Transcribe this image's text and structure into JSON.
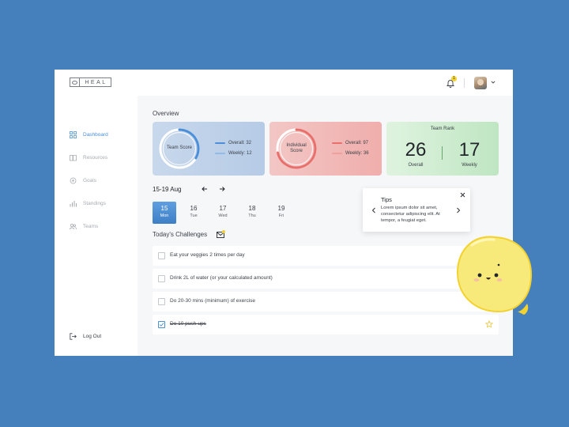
{
  "brand": {
    "name": "HEAL"
  },
  "header": {
    "notification_count": "1"
  },
  "sidebar": {
    "items": [
      {
        "label": "Dashboard",
        "icon": "grid-icon",
        "active": true
      },
      {
        "label": "Resources",
        "icon": "book-icon",
        "active": false
      },
      {
        "label": "Goals",
        "icon": "target-icon",
        "active": false
      },
      {
        "label": "Standings",
        "icon": "bar-chart-icon",
        "active": false
      },
      {
        "label": "Teams",
        "icon": "users-icon",
        "active": false
      }
    ],
    "logout_label": "Log Out"
  },
  "overview": {
    "title": "Overview",
    "team_score": {
      "label": "Team Score",
      "overall": "Overall: 32",
      "weekly": "Weekly: 12",
      "color": "#4a8fd8"
    },
    "individual_score": {
      "label_line1": "Individual",
      "label_line2": "Score",
      "overall": "Overall: 97",
      "weekly": "Weekly: 36",
      "color": "#e8706c"
    },
    "team_rank": {
      "title": "Team Rank",
      "overall_value": "26",
      "overall_label": "Overall",
      "weekly_value": "17",
      "weekly_label": "Weekly"
    }
  },
  "week": {
    "range": "15-19 Aug",
    "days": [
      {
        "num": "15",
        "name": "Mon",
        "selected": true
      },
      {
        "num": "16",
        "name": "Tue",
        "selected": false
      },
      {
        "num": "17",
        "name": "Wed",
        "selected": false
      },
      {
        "num": "18",
        "name": "Thu",
        "selected": false
      },
      {
        "num": "19",
        "name": "Fri",
        "selected": false
      }
    ]
  },
  "challenges": {
    "title": "Today's Challenges",
    "items": [
      {
        "text": "Eat your veggies 2 times per day",
        "done": false
      },
      {
        "text": "Drink 2L of water (or your calculated amount)",
        "done": false
      },
      {
        "text": "Do 20-30 mins (minimum) of exercise",
        "done": false
      },
      {
        "text": "Do 10 push-ups",
        "done": true
      }
    ]
  },
  "tips": {
    "title": "Tips",
    "text": "Lorem ipsum dolor sit amet, consectetur adipiscing elit. At tempor, a feugiat eget."
  },
  "colors": {
    "background": "#4580bd",
    "accent": "#4a8fd8",
    "badge": "#f3d22f"
  }
}
